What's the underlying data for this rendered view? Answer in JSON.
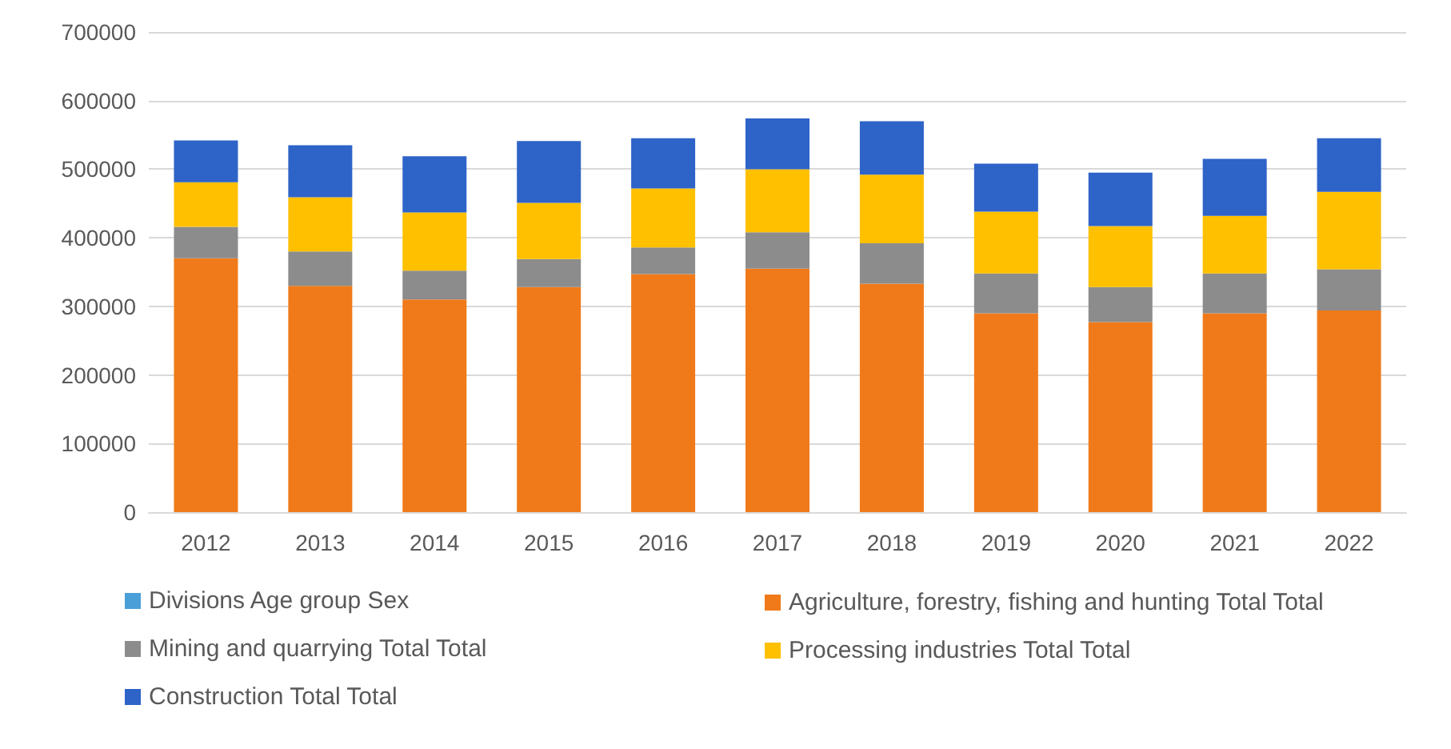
{
  "chart_data": {
    "type": "bar",
    "stacked": true,
    "categories": [
      "2012",
      "2013",
      "2014",
      "2015",
      "2016",
      "2017",
      "2018",
      "2019",
      "2020",
      "2021",
      "2022"
    ],
    "series": [
      {
        "name": "Divisions Age group Sex",
        "color": "#4a9fd8",
        "values": [
          null,
          null,
          null,
          null,
          null,
          null,
          null,
          null,
          null,
          null,
          null
        ]
      },
      {
        "name": "Agriculture, forestry, fishing and hunting Total Total",
        "color": "#f07a1a",
        "values": [
          370000,
          330000,
          310000,
          328000,
          347000,
          355000,
          333000,
          290000,
          277000,
          290000,
          294000
        ]
      },
      {
        "name": "Mining and quarrying Total Total",
        "color": "#8c8c8c",
        "values": [
          46000,
          50000,
          42000,
          41000,
          39000,
          53000,
          59000,
          58000,
          51000,
          58000,
          60000
        ]
      },
      {
        "name": "Processing industries Total Total",
        "color": "#ffc000",
        "values": [
          65000,
          79000,
          85000,
          82000,
          86000,
          92000,
          100000,
          90000,
          89000,
          84000,
          113000
        ]
      },
      {
        "name": "Construction Total Total",
        "color": "#2e63c8",
        "values": [
          61000,
          76000,
          82000,
          90000,
          73000,
          74000,
          78000,
          70000,
          78000,
          83000,
          78000
        ]
      }
    ],
    "ylim": [
      0,
      700000
    ],
    "yticks": [
      0,
      100000,
      200000,
      300000,
      400000,
      500000,
      600000,
      700000
    ],
    "grid": "y",
    "legend": "bottom"
  }
}
